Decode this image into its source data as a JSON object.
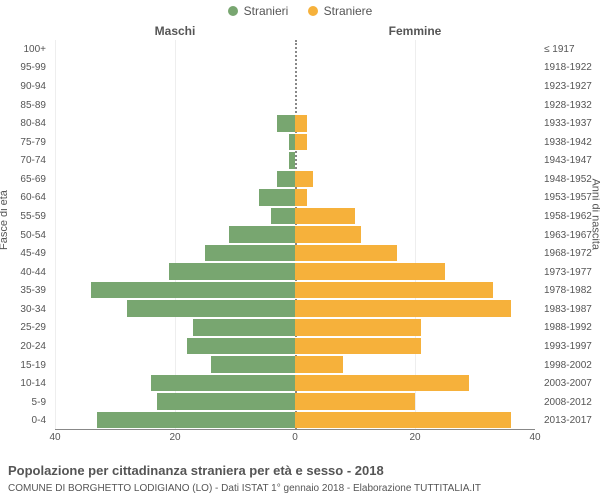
{
  "legend": {
    "male_label": "Stranieri",
    "female_label": "Straniere"
  },
  "column_headers": {
    "left": "Maschi",
    "right": "Femmine"
  },
  "colors": {
    "male": "#78a670",
    "female": "#f6b13b",
    "grid": "#eeeeee",
    "axis": "#888888",
    "background": "#ffffff",
    "text": "#555555",
    "title": "#555555"
  },
  "axis": {
    "left_label": "Fasce di età",
    "right_label": "Anni di nascita",
    "x_ticks": [
      40,
      20,
      0,
      20,
      40
    ],
    "x_tick_positions_pct": [
      0,
      25,
      50,
      75,
      100
    ],
    "x_max": 40
  },
  "chart": {
    "type": "population-pyramid",
    "categories_age": [
      "100+",
      "95-99",
      "90-94",
      "85-89",
      "80-84",
      "75-79",
      "70-74",
      "65-69",
      "60-64",
      "55-59",
      "50-54",
      "45-49",
      "40-44",
      "35-39",
      "30-34",
      "25-29",
      "20-24",
      "15-19",
      "10-14",
      "5-9",
      "0-4"
    ],
    "categories_birth": [
      "≤ 1917",
      "1918-1922",
      "1923-1927",
      "1928-1932",
      "1933-1937",
      "1938-1942",
      "1943-1947",
      "1948-1952",
      "1953-1957",
      "1958-1962",
      "1963-1967",
      "1968-1972",
      "1973-1977",
      "1978-1982",
      "1983-1987",
      "1988-1992",
      "1993-1997",
      "1998-2002",
      "2003-2007",
      "2008-2012",
      "2013-2017"
    ],
    "male_values": [
      0,
      0,
      0,
      0,
      3,
      1,
      1,
      3,
      6,
      4,
      11,
      15,
      21,
      34,
      28,
      17,
      18,
      14,
      24,
      23,
      33
    ],
    "female_values": [
      0,
      0,
      0,
      0,
      2,
      2,
      0,
      3,
      2,
      10,
      11,
      17,
      25,
      33,
      36,
      21,
      21,
      8,
      29,
      20,
      36
    ]
  },
  "title": "Popolazione per cittadinanza straniera per età e sesso - 2018",
  "subtitle": "COMUNE DI BORGHETTO LODIGIANO (LO) - Dati ISTAT 1° gennaio 2018 - Elaborazione TUTTITALIA.IT"
}
